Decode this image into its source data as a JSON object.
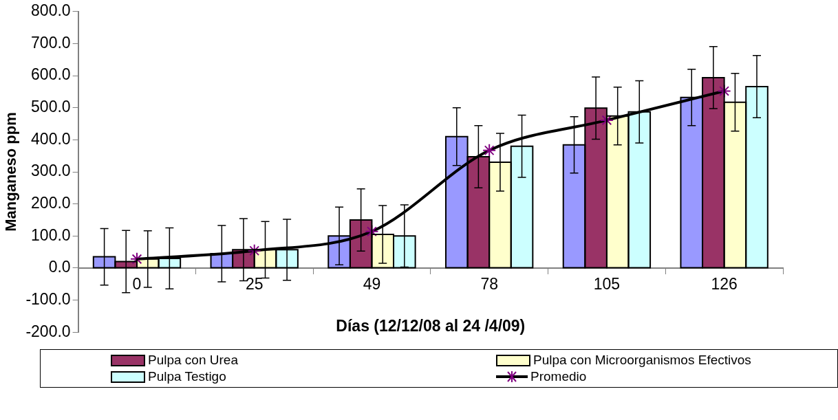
{
  "chart_data": {
    "type": "bar",
    "xlabel": "Días (12/12/08 al 24 /4/09)",
    "ylabel": "Manganeso ppm",
    "categories": [
      "0",
      "25",
      "49",
      "78",
      "105",
      "126"
    ],
    "series": [
      {
        "color": "#9999ff",
        "values": [
          35,
          45,
          100,
          410,
          384,
          532
        ],
        "errors": [
          88,
          88,
          90,
          90,
          88,
          88
        ]
      },
      {
        "name": "Pulpa con Urea",
        "color": "#993366",
        "values": [
          20,
          57,
          150,
          347,
          499,
          594
        ],
        "errors": [
          97,
          97,
          97,
          97,
          97,
          97
        ]
      },
      {
        "name": "Pulpa con Microorganismos Efectivos",
        "color": "#ffffcc",
        "values": [
          28,
          57,
          105,
          330,
          474,
          517
        ],
        "errors": [
          88,
          88,
          90,
          90,
          90,
          90
        ]
      },
      {
        "name": "Pulpa Testigo",
        "color": "#ccffff",
        "values": [
          30,
          57,
          100,
          380,
          487,
          566
        ],
        "errors": [
          95,
          95,
          97,
          97,
          97,
          97
        ]
      },
      {
        "name": "Promedio",
        "type": "line",
        "color": "#000000",
        "marker": "cross",
        "values": [
          28,
          54,
          114,
          367,
          461,
          552
        ]
      }
    ],
    "ylim": [
      -200,
      800
    ],
    "yticks": [
      {
        "value": -200,
        "label": "-200.0"
      },
      {
        "value": -100,
        "label": "-100.0"
      },
      {
        "value": 0,
        "label": "0.0"
      },
      {
        "value": 100,
        "label": "100.0"
      },
      {
        "value": 200,
        "label": "200.0"
      },
      {
        "value": 300,
        "label": "300.0"
      },
      {
        "value": 400,
        "label": "400.0"
      },
      {
        "value": 500,
        "label": "500.0"
      },
      {
        "value": 600,
        "label": "600.0"
      },
      {
        "value": 700,
        "label": "700.0"
      },
      {
        "value": 800,
        "label": "800.0"
      }
    ],
    "grid": false,
    "legend": "bottom"
  }
}
